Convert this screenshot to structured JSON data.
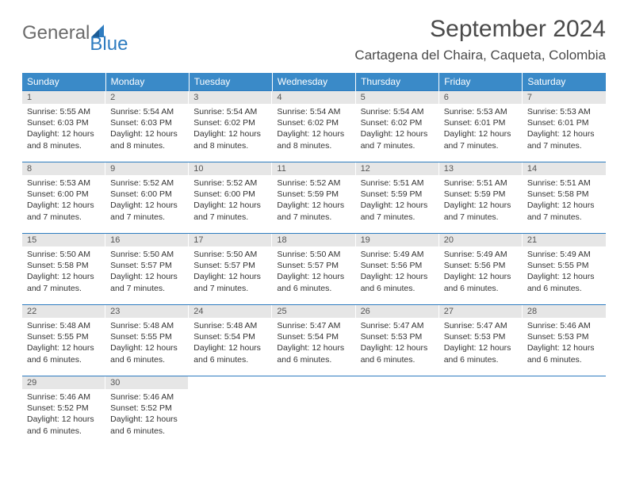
{
  "logo": {
    "main": "General",
    "sub": "Blue"
  },
  "title": "September 2024",
  "location": "Cartagena del Chaira, Caqueta, Colombia",
  "colors": {
    "header_bg": "#3a8ac8",
    "header_text": "#ffffff",
    "daynum_bg": "#e6e6e6",
    "border": "#2e7cc0",
    "logo_gray": "#6b6b6b",
    "logo_blue": "#2e7cc0"
  },
  "dayHeaders": [
    "Sunday",
    "Monday",
    "Tuesday",
    "Wednesday",
    "Thursday",
    "Friday",
    "Saturday"
  ],
  "weeks": [
    [
      {
        "n": "1",
        "sr": "5:55 AM",
        "ss": "6:03 PM",
        "dl": "12 hours and 8 minutes."
      },
      {
        "n": "2",
        "sr": "5:54 AM",
        "ss": "6:03 PM",
        "dl": "12 hours and 8 minutes."
      },
      {
        "n": "3",
        "sr": "5:54 AM",
        "ss": "6:02 PM",
        "dl": "12 hours and 8 minutes."
      },
      {
        "n": "4",
        "sr": "5:54 AM",
        "ss": "6:02 PM",
        "dl": "12 hours and 8 minutes."
      },
      {
        "n": "5",
        "sr": "5:54 AM",
        "ss": "6:02 PM",
        "dl": "12 hours and 7 minutes."
      },
      {
        "n": "6",
        "sr": "5:53 AM",
        "ss": "6:01 PM",
        "dl": "12 hours and 7 minutes."
      },
      {
        "n": "7",
        "sr": "5:53 AM",
        "ss": "6:01 PM",
        "dl": "12 hours and 7 minutes."
      }
    ],
    [
      {
        "n": "8",
        "sr": "5:53 AM",
        "ss": "6:00 PM",
        "dl": "12 hours and 7 minutes."
      },
      {
        "n": "9",
        "sr": "5:52 AM",
        "ss": "6:00 PM",
        "dl": "12 hours and 7 minutes."
      },
      {
        "n": "10",
        "sr": "5:52 AM",
        "ss": "6:00 PM",
        "dl": "12 hours and 7 minutes."
      },
      {
        "n": "11",
        "sr": "5:52 AM",
        "ss": "5:59 PM",
        "dl": "12 hours and 7 minutes."
      },
      {
        "n": "12",
        "sr": "5:51 AM",
        "ss": "5:59 PM",
        "dl": "12 hours and 7 minutes."
      },
      {
        "n": "13",
        "sr": "5:51 AM",
        "ss": "5:59 PM",
        "dl": "12 hours and 7 minutes."
      },
      {
        "n": "14",
        "sr": "5:51 AM",
        "ss": "5:58 PM",
        "dl": "12 hours and 7 minutes."
      }
    ],
    [
      {
        "n": "15",
        "sr": "5:50 AM",
        "ss": "5:58 PM",
        "dl": "12 hours and 7 minutes."
      },
      {
        "n": "16",
        "sr": "5:50 AM",
        "ss": "5:57 PM",
        "dl": "12 hours and 7 minutes."
      },
      {
        "n": "17",
        "sr": "5:50 AM",
        "ss": "5:57 PM",
        "dl": "12 hours and 7 minutes."
      },
      {
        "n": "18",
        "sr": "5:50 AM",
        "ss": "5:57 PM",
        "dl": "12 hours and 6 minutes."
      },
      {
        "n": "19",
        "sr": "5:49 AM",
        "ss": "5:56 PM",
        "dl": "12 hours and 6 minutes."
      },
      {
        "n": "20",
        "sr": "5:49 AM",
        "ss": "5:56 PM",
        "dl": "12 hours and 6 minutes."
      },
      {
        "n": "21",
        "sr": "5:49 AM",
        "ss": "5:55 PM",
        "dl": "12 hours and 6 minutes."
      }
    ],
    [
      {
        "n": "22",
        "sr": "5:48 AM",
        "ss": "5:55 PM",
        "dl": "12 hours and 6 minutes."
      },
      {
        "n": "23",
        "sr": "5:48 AM",
        "ss": "5:55 PM",
        "dl": "12 hours and 6 minutes."
      },
      {
        "n": "24",
        "sr": "5:48 AM",
        "ss": "5:54 PM",
        "dl": "12 hours and 6 minutes."
      },
      {
        "n": "25",
        "sr": "5:47 AM",
        "ss": "5:54 PM",
        "dl": "12 hours and 6 minutes."
      },
      {
        "n": "26",
        "sr": "5:47 AM",
        "ss": "5:53 PM",
        "dl": "12 hours and 6 minutes."
      },
      {
        "n": "27",
        "sr": "5:47 AM",
        "ss": "5:53 PM",
        "dl": "12 hours and 6 minutes."
      },
      {
        "n": "28",
        "sr": "5:46 AM",
        "ss": "5:53 PM",
        "dl": "12 hours and 6 minutes."
      }
    ],
    [
      {
        "n": "29",
        "sr": "5:46 AM",
        "ss": "5:52 PM",
        "dl": "12 hours and 6 minutes."
      },
      {
        "n": "30",
        "sr": "5:46 AM",
        "ss": "5:52 PM",
        "dl": "12 hours and 6 minutes."
      },
      null,
      null,
      null,
      null,
      null
    ]
  ],
  "labels": {
    "sunrise": "Sunrise: ",
    "sunset": "Sunset: ",
    "daylight": "Daylight: "
  }
}
